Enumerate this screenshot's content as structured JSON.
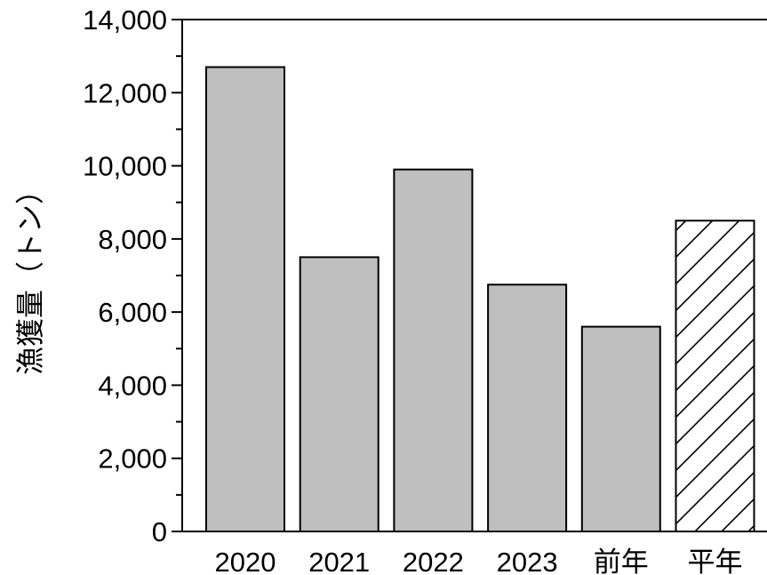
{
  "chart_data": {
    "type": "bar",
    "title": "",
    "xlabel": "",
    "ylabel": "漁獲量（トン）",
    "ylim": [
      0,
      14000
    ],
    "yticks": [
      0,
      2000,
      4000,
      6000,
      8000,
      10000,
      12000,
      14000
    ],
    "ytick_labels": [
      "0",
      "2,000",
      "4,000",
      "6,000",
      "8,000",
      "10,000",
      "12,000",
      "14,000"
    ],
    "categories": [
      "2020",
      "2021",
      "2022",
      "2023",
      "前年",
      "平年"
    ],
    "values": [
      12700,
      7500,
      9900,
      6750,
      5600,
      8500
    ],
    "bar_fills": [
      "#bfbfbf",
      "#bfbfbf",
      "#bfbfbf",
      "#bfbfbf",
      "#bfbfbf",
      "hatch"
    ],
    "bar_color": "#bfbfbf",
    "edge_color": "#000000",
    "grid": false,
    "legend": "none"
  }
}
